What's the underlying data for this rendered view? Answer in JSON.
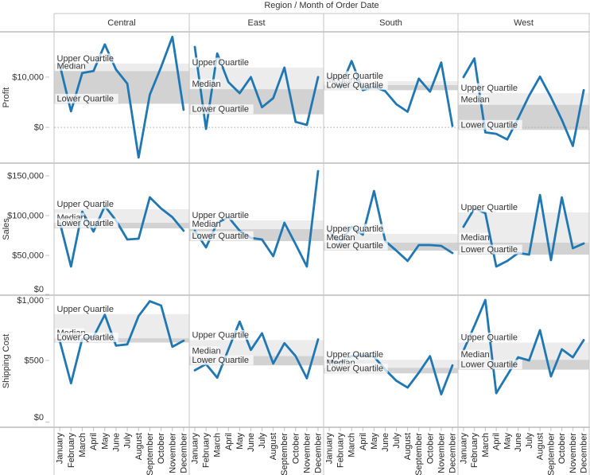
{
  "title": "Region  /  Month of Order Date",
  "band_labels": {
    "upper": "Upper Quartile",
    "median": "Median",
    "lower": "Lower Quartile"
  },
  "colors": {
    "line": "#1f77b4",
    "band_upper": "#ececec",
    "band_lower": "#d2d2d2",
    "row_border": "#9a9a9a",
    "panel_border": "#c6c6c6",
    "zero_line": "#ababab",
    "text": "#333333",
    "label_halo": "rgba(255,255,255,0.72)"
  },
  "chart_data": {
    "type": "line",
    "col_field": "Region",
    "x_field": "Month of Order Date",
    "columns": [
      "Central",
      "East",
      "South",
      "West"
    ],
    "x_categories": [
      "January",
      "February",
      "March",
      "April",
      "May",
      "June",
      "July",
      "August",
      "September",
      "October",
      "November",
      "December"
    ],
    "rows": [
      {
        "measure": "Profit",
        "ylim": [
          -7100,
          19000
        ],
        "zero_line": true,
        "ticks": [
          {
            "value": 10000,
            "label": "$10,000"
          },
          {
            "value": 0,
            "label": "$0"
          }
        ],
        "series": [
          {
            "region": "Central",
            "values": [
              12500,
              3200,
              10800,
              11200,
              16500,
              11500,
              8700,
              -6000,
              6500,
              12000,
              18000,
              3500
            ]
          },
          {
            "region": "East",
            "values": [
              16000,
              -300,
              14700,
              9000,
              6800,
              10000,
              4000,
              5800,
              11900,
              1100,
              500,
              10000
            ]
          },
          {
            "region": "South",
            "values": [
              9500,
              7900,
              13200,
              7400,
              8100,
              7200,
              4600,
              3100,
              9700,
              7100,
              12900,
              300
            ]
          },
          {
            "region": "West",
            "values": [
              10000,
              13700,
              -1000,
              -1300,
              -2400,
              1800,
              6300,
              10100,
              6000,
              1500,
              -3700,
              7400
            ]
          }
        ],
        "quartiles": [
          {
            "region": "Central",
            "upper": 12700,
            "median": 11200,
            "lower": 4700
          },
          {
            "region": "East",
            "upper": 11900,
            "median": 7600,
            "lower": 2600
          },
          {
            "region": "South",
            "upper": 9200,
            "median": 8400,
            "lower": 7400
          },
          {
            "region": "West",
            "upper": 6800,
            "median": 4500,
            "lower": -500
          }
        ]
      },
      {
        "measure": "Sales",
        "ylim": [
          0,
          166000
        ],
        "zero_line": false,
        "ticks": [
          {
            "value": 150000,
            "label": "$150,000"
          },
          {
            "value": 100000,
            "label": "$100,000"
          },
          {
            "value": 50000,
            "label": "$50,000"
          },
          {
            "value": 0,
            "label": "$0"
          }
        ],
        "series": [
          {
            "region": "Central",
            "values": [
              92000,
              36000,
              105000,
              80000,
              112000,
              94000,
              70000,
              71000,
              123000,
              109000,
              98000,
              81000
            ]
          },
          {
            "region": "East",
            "values": [
              81000,
              60000,
              91000,
              98000,
              81000,
              72000,
              70000,
              49000,
              91000,
              64000,
              36000,
              156000
            ]
          },
          {
            "region": "South",
            "values": [
              80000,
              66000,
              86000,
              76000,
              131000,
              68000,
              56000,
              43000,
              63000,
              63000,
              62000,
              53000
            ]
          },
          {
            "region": "West",
            "values": [
              86000,
              109000,
              103000,
              36000,
              43000,
              53000,
              51000,
              126000,
              44000,
              123000,
              59000,
              65000
            ]
          }
        ],
        "quartiles": [
          {
            "region": "Central",
            "upper": 108000,
            "median": 91000,
            "lower": 84000
          },
          {
            "region": "East",
            "upper": 94000,
            "median": 83000,
            "lower": 68000
          },
          {
            "region": "South",
            "upper": 77000,
            "median": 66000,
            "lower": 56000
          },
          {
            "region": "West",
            "upper": 104000,
            "median": 66000,
            "lower": 51000
          }
        ]
      },
      {
        "measure": "Shipping Cost",
        "ylim": [
          -42,
          1029
        ],
        "zero_line": false,
        "ticks": [
          {
            "value": 1000,
            "label": "$1,000"
          },
          {
            "value": 500,
            "label": "$500"
          },
          {
            "value": 0,
            "label": "$0"
          }
        ],
        "series": [
          {
            "region": "Central",
            "values": [
              660,
              315,
              675,
              690,
              870,
              620,
              630,
              860,
              980,
              945,
              610,
              660
            ]
          },
          {
            "region": "East",
            "values": [
              420,
              470,
              360,
              590,
              815,
              585,
              720,
              475,
              640,
              535,
              355,
              670
            ]
          },
          {
            "region": "South",
            "values": [
              500,
              480,
              535,
              540,
              530,
              425,
              335,
              280,
              400,
              535,
              225,
              460
            ]
          },
          {
            "region": "West",
            "values": [
              580,
              780,
              990,
              235,
              380,
              525,
              500,
              745,
              370,
              590,
              525,
              665
            ]
          }
        ],
        "quartiles": [
          {
            "region": "Central",
            "upper": 875,
            "median": 680,
            "lower": 645
          },
          {
            "region": "East",
            "upper": 665,
            "median": 535,
            "lower": 460
          },
          {
            "region": "South",
            "upper": 505,
            "median": 440,
            "lower": 395
          },
          {
            "region": "West",
            "upper": 645,
            "median": 505,
            "lower": 425
          }
        ]
      }
    ]
  }
}
